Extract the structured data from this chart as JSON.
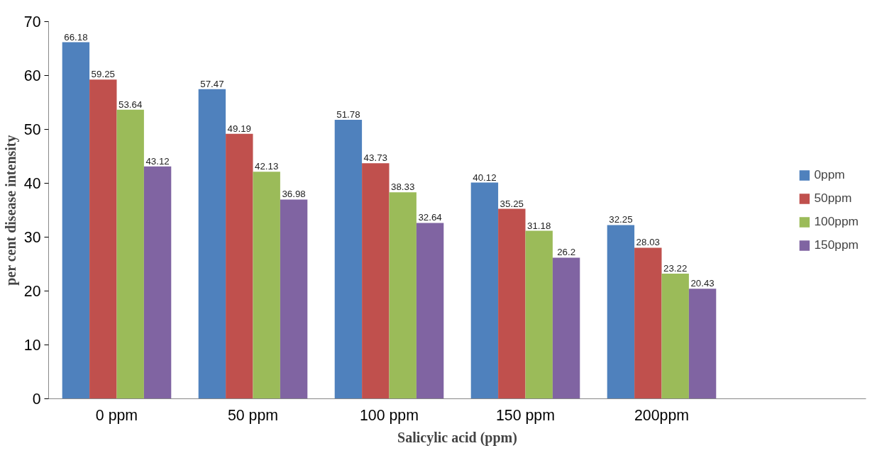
{
  "chart_data": {
    "type": "bar",
    "xlabel": "Salicylic acid (ppm)",
    "ylabel": "per cent disease intensity",
    "categories": [
      "0 ppm",
      "50 ppm",
      "100 ppm",
      "150 ppm",
      "200ppm"
    ],
    "series": [
      {
        "name": "0ppm",
        "color": "#4f81bd",
        "values": [
          66.18,
          57.47,
          51.78,
          40.12,
          32.25
        ]
      },
      {
        "name": "50ppm",
        "color": "#c0504d",
        "values": [
          59.25,
          49.19,
          43.73,
          35.25,
          28.03
        ]
      },
      {
        "name": "100ppm",
        "color": "#9bbb59",
        "values": [
          53.64,
          42.13,
          38.33,
          31.18,
          23.22
        ]
      },
      {
        "name": "150ppm",
        "color": "#8064a2",
        "values": [
          43.12,
          36.98,
          32.64,
          26.2,
          20.43
        ]
      }
    ],
    "ylim": [
      0,
      70
    ],
    "yticks": [
      0,
      10,
      20,
      30,
      40,
      50,
      60,
      70
    ],
    "grid": false,
    "legend": "right",
    "data_labels": true
  }
}
